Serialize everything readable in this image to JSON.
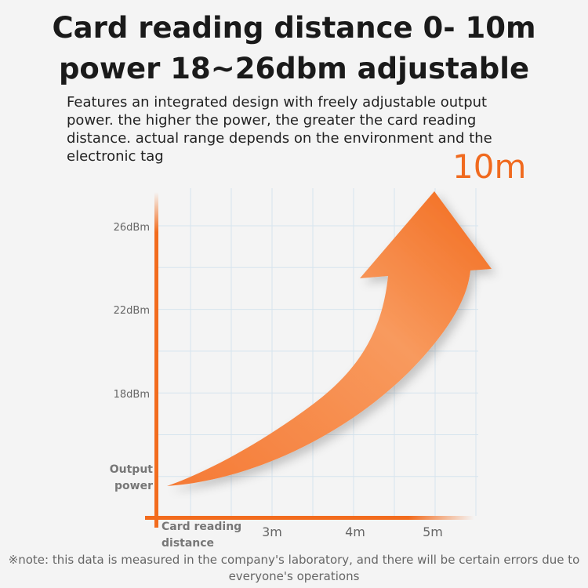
{
  "header": {
    "title_line1": "Card reading distance 0- 10m",
    "title_line2": "power 18~26dbm adjustable",
    "description": "Features an integrated design with freely adjustable output power. the higher the power, the greater the card reading distance. actual range depends on the environment and the electronic tag"
  },
  "highlight": "10m",
  "footnote": "※note: this data is measured in the company's laboratory, and there will be certain errors due to everyone's operations",
  "colors": {
    "accent": "#f26b1d",
    "grid": "#d6e4ee"
  },
  "chart_data": {
    "type": "line",
    "ylabel": "Output power",
    "xlabel": "Card reading distance",
    "y_ticks": [
      "26dBm",
      "22dBm",
      "18dBm"
    ],
    "x_ticks": [
      "3m",
      "4m",
      "5m"
    ],
    "grid": true,
    "mark": "rising curved arrow"
  }
}
